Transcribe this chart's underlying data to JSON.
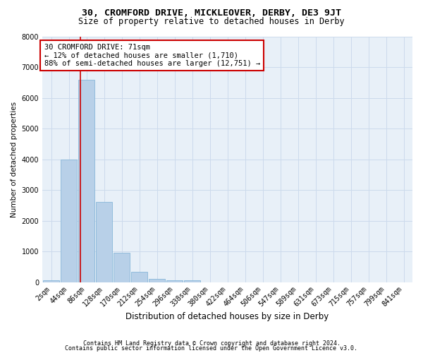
{
  "title1": "30, CROMFORD DRIVE, MICKLEOVER, DERBY, DE3 9JT",
  "title2": "Size of property relative to detached houses in Derby",
  "xlabel": "Distribution of detached houses by size in Derby",
  "ylabel": "Number of detached properties",
  "footnote1": "Contains HM Land Registry data © Crown copyright and database right 2024.",
  "footnote2": "Contains public sector information licensed under the Open Government Licence v3.0.",
  "bar_labels": [
    "2sqm",
    "44sqm",
    "86sqm",
    "128sqm",
    "170sqm",
    "212sqm",
    "254sqm",
    "296sqm",
    "338sqm",
    "380sqm",
    "422sqm",
    "464sqm",
    "506sqm",
    "547sqm",
    "589sqm",
    "631sqm",
    "673sqm",
    "715sqm",
    "757sqm",
    "799sqm",
    "841sqm"
  ],
  "bar_values": [
    50,
    3980,
    6580,
    2620,
    950,
    330,
    110,
    70,
    50,
    0,
    0,
    0,
    0,
    0,
    0,
    0,
    0,
    0,
    0,
    0,
    0
  ],
  "bar_color": "#b8d0e8",
  "bar_edge_color": "#7aafd4",
  "grid_color": "#ccdaec",
  "background_color": "#e8f0f8",
  "vline_color": "#cc0000",
  "annotation_box_color": "#cc0000",
  "ylim": [
    0,
    8000
  ],
  "yticks": [
    0,
    1000,
    2000,
    3000,
    4000,
    5000,
    6000,
    7000,
    8000
  ],
  "title1_fontsize": 9.5,
  "title2_fontsize": 8.5,
  "xlabel_fontsize": 8.5,
  "ylabel_fontsize": 7.5,
  "tick_fontsize": 7,
  "annotation_fontsize": 7.5,
  "footnote_fontsize": 6
}
